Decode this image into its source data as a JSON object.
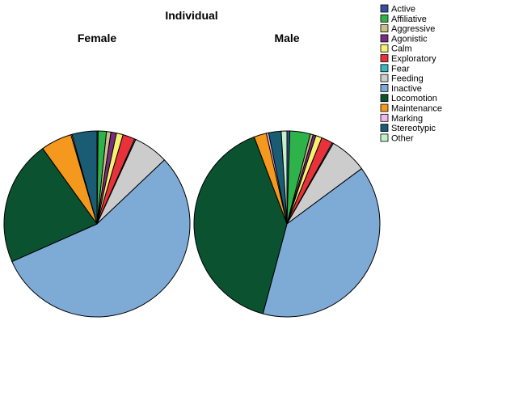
{
  "chart_data": {
    "type": "pie",
    "title": "Individual",
    "categories": [
      "Active",
      "Affiliative",
      "Aggressive",
      "Agonistic",
      "Calm",
      "Exploratory",
      "Fear",
      "Feeding",
      "Inactive",
      "Locomotion",
      "Maintenance",
      "Marking",
      "Stereotypic",
      "Other"
    ],
    "colors": [
      "#3a4f9e",
      "#2eb34a",
      "#c9bf8a",
      "#7b2d7d",
      "#f7f072",
      "#e8323b",
      "#3ab5c2",
      "#cccccc",
      "#7eaad6",
      "#0b5230",
      "#f5981e",
      "#f0b8e8",
      "#1b5c75",
      "#c2f0c8"
    ],
    "legend_position": "top-right",
    "series": [
      {
        "name": "Female",
        "values": [
          0.2,
          1.5,
          0.8,
          1.0,
          1.2,
          2.2,
          0.2,
          6.3,
          57.5,
          22.5,
          5.6,
          0.2,
          4.5,
          0.0
        ]
      },
      {
        "name": "Male",
        "values": [
          0.5,
          3.6,
          0.5,
          0.5,
          1.1,
          2.0,
          0.2,
          6.6,
          39.7,
          40.5,
          2.2,
          0.4,
          2.2,
          1.0
        ]
      }
    ]
  }
}
